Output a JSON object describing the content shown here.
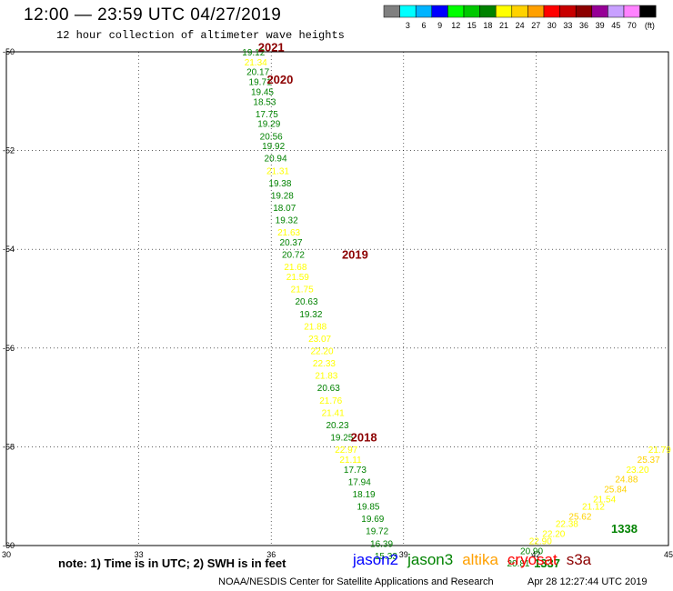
{
  "header": {
    "title": "12:00 — 23:59 UTC 04/27/2019",
    "subtitle": "12 hour collection of altimeter wave heights"
  },
  "legend": {
    "bins": [
      {
        "label": "",
        "color": "#808080"
      },
      {
        "label": "3",
        "color": "#00ffff"
      },
      {
        "label": "6",
        "color": "#00b4ff"
      },
      {
        "label": "9",
        "color": "#0000ff"
      },
      {
        "label": "12",
        "color": "#00ff00"
      },
      {
        "label": "15",
        "color": "#00c800"
      },
      {
        "label": "18",
        "color": "#008200"
      },
      {
        "label": "21",
        "color": "#ffff00"
      },
      {
        "label": "24",
        "color": "#ffd200"
      },
      {
        "label": "27",
        "color": "#ffa000"
      },
      {
        "label": "30",
        "color": "#ff0000"
      },
      {
        "label": "33",
        "color": "#c80000"
      },
      {
        "label": "36",
        "color": "#8c0000"
      },
      {
        "label": "39",
        "color": "#960096"
      },
      {
        "label": "45",
        "color": "#c8a0ff"
      },
      {
        "label": "70",
        "color": "#ff82ff"
      },
      {
        "label": "(ft)",
        "color": "#000000"
      }
    ]
  },
  "footer": {
    "note": "note:  1) Time is in UTC;  2) SWH is in feet",
    "satellites": [
      {
        "name": "jason2",
        "color": "#0000ff"
      },
      {
        "name": "jason3",
        "color": "#008200"
      },
      {
        "name": "altika",
        "color": "#ffa000"
      },
      {
        "name": "cryosat",
        "color": "#ff0000"
      },
      {
        "name": "s3a",
        "color": "#8c0000"
      }
    ],
    "credit": "NOAA/NESDIS Center for Satellite Applications and Research",
    "timestamp": "Apr 28 12:27:44 UTC 2019"
  },
  "chart_data": {
    "type": "scatter",
    "xlim": [
      30,
      45
    ],
    "ylim": [
      -60,
      -50
    ],
    "xticks": [
      "30",
      "33",
      "36",
      "39",
      "42",
      "45"
    ],
    "yticks": [
      "-50",
      "-52",
      "-54",
      "-56",
      "-58",
      "-60"
    ],
    "grid": true,
    "points": [
      {
        "x": 35.6,
        "y": -50.0,
        "v": "19.12",
        "color": "#008200"
      },
      {
        "x": 35.65,
        "y": -50.2,
        "v": "21.34",
        "color": "#ffff00"
      },
      {
        "x": 35.7,
        "y": -50.4,
        "v": "20.17",
        "color": "#008200"
      },
      {
        "x": 35.75,
        "y": -50.6,
        "v": "19.71",
        "color": "#008200"
      },
      {
        "x": 35.8,
        "y": -50.8,
        "v": "19.45",
        "color": "#008200"
      },
      {
        "x": 35.85,
        "y": -51.0,
        "v": "18.53",
        "color": "#008200"
      },
      {
        "x": 35.9,
        "y": -51.25,
        "v": "17.75",
        "color": "#008200"
      },
      {
        "x": 35.95,
        "y": -51.45,
        "v": "19.29",
        "color": "#008200"
      },
      {
        "x": 36.0,
        "y": -51.7,
        "v": "20.56",
        "color": "#008200"
      },
      {
        "x": 36.05,
        "y": -51.9,
        "v": "19.92",
        "color": "#008200"
      },
      {
        "x": 36.1,
        "y": -52.15,
        "v": "20.94",
        "color": "#008200"
      },
      {
        "x": 36.15,
        "y": -52.4,
        "v": "21.31",
        "color": "#ffff00"
      },
      {
        "x": 36.2,
        "y": -52.65,
        "v": "19.38",
        "color": "#008200"
      },
      {
        "x": 36.25,
        "y": -52.9,
        "v": "19.28",
        "color": "#008200"
      },
      {
        "x": 36.3,
        "y": -53.15,
        "v": "18.07",
        "color": "#008200"
      },
      {
        "x": 36.35,
        "y": -53.4,
        "v": "19.32",
        "color": "#008200"
      },
      {
        "x": 36.4,
        "y": -53.65,
        "v": "21.63",
        "color": "#ffff00"
      },
      {
        "x": 36.45,
        "y": -53.85,
        "v": "20.37",
        "color": "#008200"
      },
      {
        "x": 36.5,
        "y": -54.1,
        "v": "20.72",
        "color": "#008200"
      },
      {
        "x": 36.55,
        "y": -54.35,
        "v": "21.68",
        "color": "#ffff00"
      },
      {
        "x": 36.6,
        "y": -54.55,
        "v": "21.59",
        "color": "#ffff00"
      },
      {
        "x": 36.7,
        "y": -54.8,
        "v": "21.75",
        "color": "#ffff00"
      },
      {
        "x": 36.8,
        "y": -55.05,
        "v": "20.63",
        "color": "#008200"
      },
      {
        "x": 36.9,
        "y": -55.3,
        "v": "19.32",
        "color": "#008200"
      },
      {
        "x": 37.0,
        "y": -55.55,
        "v": "21.88",
        "color": "#ffff00"
      },
      {
        "x": 37.1,
        "y": -55.8,
        "v": "23.07",
        "color": "#ffff00"
      },
      {
        "x": 37.15,
        "y": -56.05,
        "v": "22.20",
        "color": "#ffff00"
      },
      {
        "x": 37.2,
        "y": -56.3,
        "v": "22.33",
        "color": "#ffff00"
      },
      {
        "x": 37.25,
        "y": -56.55,
        "v": "21.83",
        "color": "#ffff00"
      },
      {
        "x": 37.3,
        "y": -56.8,
        "v": "20.63",
        "color": "#008200"
      },
      {
        "x": 37.35,
        "y": -57.05,
        "v": "21.76",
        "color": "#ffff00"
      },
      {
        "x": 37.4,
        "y": -57.3,
        "v": "21.41",
        "color": "#ffff00"
      },
      {
        "x": 37.5,
        "y": -57.55,
        "v": "20.23",
        "color": "#008200"
      },
      {
        "x": 37.6,
        "y": -57.8,
        "v": "19.25",
        "color": "#008200"
      },
      {
        "x": 37.7,
        "y": -58.05,
        "v": "22.97",
        "color": "#ffff00"
      },
      {
        "x": 37.8,
        "y": -58.25,
        "v": "21.11",
        "color": "#ffff00"
      },
      {
        "x": 37.9,
        "y": -58.45,
        "v": "17.73",
        "color": "#008200"
      },
      {
        "x": 38.0,
        "y": -58.7,
        "v": "17.94",
        "color": "#008200"
      },
      {
        "x": 38.1,
        "y": -58.95,
        "v": "18.19",
        "color": "#008200"
      },
      {
        "x": 38.2,
        "y": -59.2,
        "v": "19.85",
        "color": "#008200"
      },
      {
        "x": 38.3,
        "y": -59.45,
        "v": "19.69",
        "color": "#008200"
      },
      {
        "x": 38.4,
        "y": -59.7,
        "v": "19.72",
        "color": "#008200"
      },
      {
        "x": 38.5,
        "y": -59.95,
        "v": "16.39",
        "color": "#008200"
      },
      {
        "x": 38.6,
        "y": -60.2,
        "v": "15.33",
        "color": "#008200"
      },
      {
        "x": 41.6,
        "y": -60.35,
        "v": "20.81",
        "color": "#008200"
      },
      {
        "x": 41.9,
        "y": -60.1,
        "v": "20.90",
        "color": "#008200"
      },
      {
        "x": 42.1,
        "y": -59.9,
        "v": "22.90",
        "color": "#ffff00"
      },
      {
        "x": 42.4,
        "y": -59.75,
        "v": "22.20",
        "color": "#ffff00"
      },
      {
        "x": 42.7,
        "y": -59.55,
        "v": "22.38",
        "color": "#ffff00"
      },
      {
        "x": 43.0,
        "y": -59.4,
        "v": "25.62",
        "color": "#ffd200"
      },
      {
        "x": 43.3,
        "y": -59.2,
        "v": "21.12",
        "color": "#ffff00"
      },
      {
        "x": 43.55,
        "y": -59.05,
        "v": "21.54",
        "color": "#ffff00"
      },
      {
        "x": 43.8,
        "y": -58.85,
        "v": "25.84",
        "color": "#ffd200"
      },
      {
        "x": 44.05,
        "y": -58.65,
        "v": "24.88",
        "color": "#ffd200"
      },
      {
        "x": 44.3,
        "y": -58.45,
        "v": "23.20",
        "color": "#ffff00"
      },
      {
        "x": 44.55,
        "y": -58.25,
        "v": "25.37",
        "color": "#ffd200"
      },
      {
        "x": 44.8,
        "y": -58.05,
        "v": "21.79",
        "color": "#ffff00"
      }
    ],
    "annotations": [
      {
        "x": 36.0,
        "y": -49.9,
        "text": "2021",
        "color": "#8c0000"
      },
      {
        "x": 36.2,
        "y": -50.55,
        "text": "2020",
        "color": "#8c0000"
      },
      {
        "x": 37.9,
        "y": -54.1,
        "text": "2019",
        "color": "#8c0000"
      },
      {
        "x": 38.1,
        "y": -57.8,
        "text": "2018",
        "color": "#8c0000"
      },
      {
        "x": 44.0,
        "y": -59.65,
        "text": "1338",
        "color": "#008200"
      },
      {
        "x": 42.25,
        "y": -60.35,
        "text": "1337",
        "color": "#008200"
      }
    ]
  }
}
